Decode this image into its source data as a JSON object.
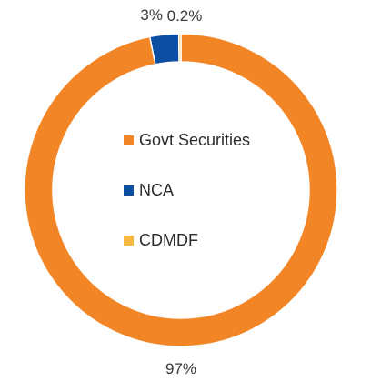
{
  "chart_data": {
    "type": "pie",
    "subtype": "donut",
    "title": "",
    "series": [
      {
        "labels": [
          "Govt Securities",
          "NCA",
          "CDMDF"
        ],
        "values": [
          97,
          3,
          0.2
        ],
        "value_labels": [
          "97%",
          "3%",
          "0.2%"
        ],
        "colors": [
          "#F28526",
          "#0B4EA2",
          "#F5B942"
        ]
      }
    ],
    "legend": {
      "placement": "center",
      "entries": [
        "Govt Securities",
        "NCA",
        "CDMDF"
      ]
    }
  }
}
